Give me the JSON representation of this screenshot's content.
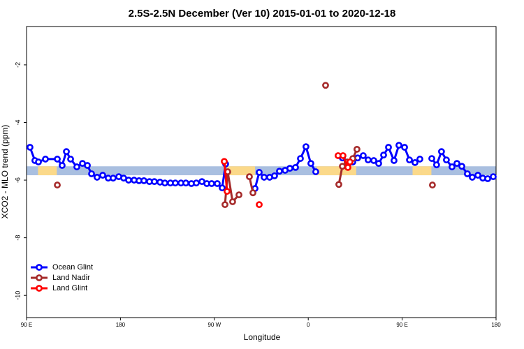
{
  "chart_data": {
    "type": "line",
    "title": "2.5S-2.5N December (Ver 10)   2015-01-01 to 2020-12-18",
    "x_label": "Longitude",
    "y_label": "XCO2 - MLO trend (ppm)",
    "xlim": [
      90,
      540
    ],
    "ylim": [
      -10.77,
      -0.67
    ],
    "xticks": [
      {
        "value": 90,
        "label": "90 E"
      },
      180,
      {
        "value": 270,
        "label": "90 W"
      },
      {
        "value": 360,
        "label": "0"
      },
      {
        "value": 450,
        "label": "90 E"
      },
      {
        "value": 540,
        "label": "180"
      }
    ],
    "yticks": [
      -2,
      -4,
      -6,
      -8,
      -10
    ],
    "legend": "bottomleft",
    "band": {
      "ylim": [
        -5.52,
        -5.83
      ],
      "color": "#a9bfe0",
      "highlight_color": "#fbd98a",
      "highlights": [
        [
          101,
          111
        ],
        [
          110,
          119
        ],
        [
          282,
          309
        ],
        [
          368,
          406
        ],
        [
          460,
          469
        ],
        [
          469,
          478
        ]
      ]
    },
    "series": [
      {
        "name": "Ocean Glint",
        "color": "#0000ff",
        "x": [
          93.3,
          98.0,
          101.4,
          108.1,
          119.5,
          124.1,
          128.2,
          132.2,
          138.2,
          143.6,
          148.3,
          152.3,
          157.6,
          163.0,
          168.3,
          173.0,
          178.4,
          183.1,
          187.8,
          193.1,
          197.8,
          202.5,
          207.8,
          212.5,
          217.9,
          222.6,
          227.9,
          232.6,
          238.0,
          242.7,
          248.0,
          252.7,
          258.1,
          262.8,
          267.4,
          272.8,
          277.5,
          280.8,
          null,
          309.0,
          313.0,
          317.7,
          323.0,
          327.7,
          332.4,
          337.8,
          342.4,
          347.8,
          352.5,
          357.8,
          362.5,
          367.2,
          null,
          392.7,
          398.0,
          402.7,
          407.4,
          412.7,
          417.4,
          422.8,
          427.5,
          432.2,
          436.9,
          442.2,
          446.9,
          452.3,
          457.0,
          462.3,
          467.0,
          null,
          478.4,
          483.0,
          487.7,
          492.4,
          497.8,
          502.5,
          507.2,
          512.5,
          517.2,
          522.6,
          527.3,
          532.0,
          537.3
        ],
        "values": [
          -4.86,
          -5.32,
          -5.37,
          -5.27,
          -5.27,
          -5.49,
          -5.01,
          -5.27,
          -5.54,
          -5.42,
          -5.49,
          -5.78,
          -5.9,
          -5.83,
          -5.93,
          -5.93,
          -5.88,
          -5.93,
          -6.0,
          -6.0,
          -6.02,
          -6.02,
          -6.05,
          -6.05,
          -6.07,
          -6.1,
          -6.1,
          -6.1,
          -6.1,
          -6.1,
          -6.12,
          -6.1,
          -6.05,
          -6.12,
          -6.12,
          -6.12,
          -6.27,
          -5.44,
          null,
          -6.29,
          -5.73,
          -5.9,
          -5.9,
          -5.85,
          -5.69,
          -5.66,
          -5.59,
          -5.56,
          -5.25,
          -4.84,
          -5.42,
          -5.71,
          null,
          -5.23,
          -5.47,
          -5.37,
          -5.23,
          -5.15,
          -5.3,
          -5.32,
          -5.42,
          -5.13,
          -4.86,
          -5.32,
          -4.79,
          -4.86,
          -5.3,
          -5.39,
          -5.27,
          null,
          -5.25,
          -5.47,
          -5.01,
          -5.3,
          -5.54,
          -5.42,
          -5.52,
          -5.78,
          -5.9,
          -5.83,
          -5.93,
          -5.95,
          -5.88
        ]
      },
      {
        "name": "Land Nadir",
        "color": "#a52a2a",
        "x": [
          119.5,
          null,
          280.2,
          282.8,
          287.5,
          293.6,
          null,
          303.6,
          307.0,
          null,
          376.6,
          null,
          389.3,
          392.7,
          397.3,
          402.7,
          406.7,
          null,
          479.0
        ],
        "values": [
          -6.17,
          null,
          -6.85,
          -5.71,
          -6.75,
          -6.51,
          null,
          -5.88,
          -6.44,
          null,
          -2.71,
          null,
          -6.15,
          -5.52,
          -5.37,
          -5.25,
          -4.93,
          null,
          -6.17
        ]
      },
      {
        "name": "Land Glint",
        "color": "#ff0000",
        "x": [
          279.5,
          282.2,
          null,
          313.0,
          null,
          388.6,
          393.3,
          398.0,
          400.0
        ],
        "values": [
          -5.35,
          -6.39,
          null,
          -6.85,
          null,
          -5.15,
          -5.15,
          -5.56,
          -5.37
        ]
      }
    ]
  }
}
